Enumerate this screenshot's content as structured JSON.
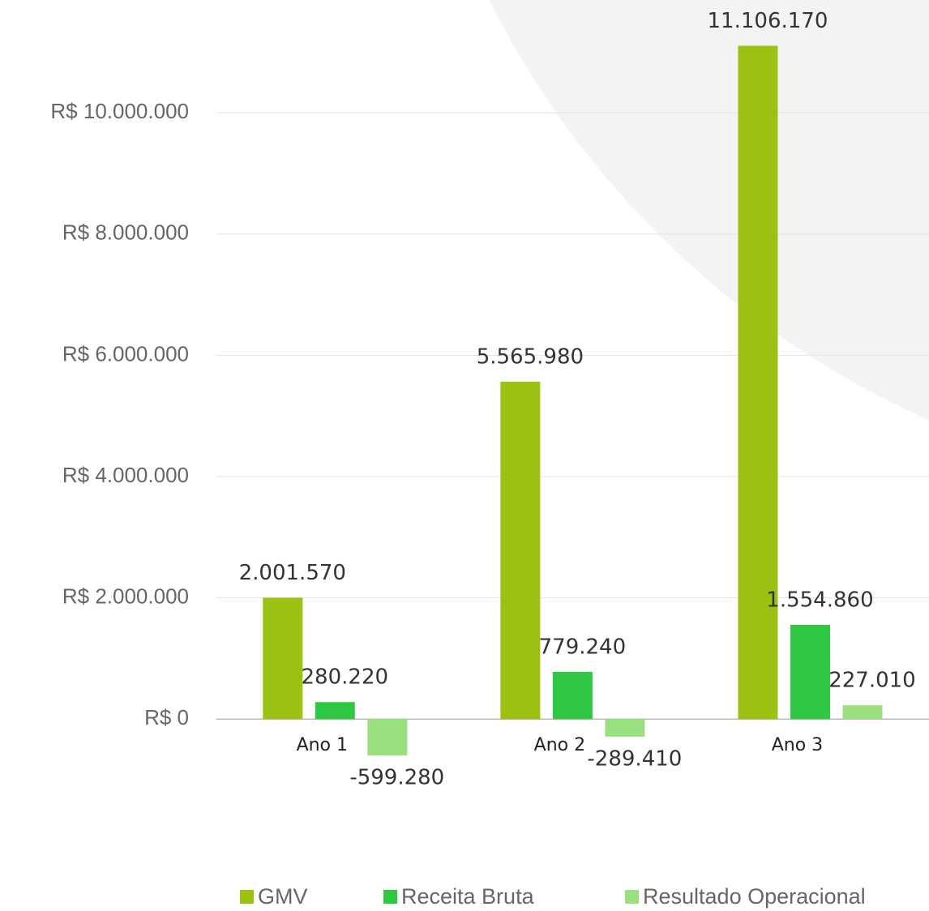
{
  "chart_data": {
    "type": "bar",
    "categories": [
      "Ano 1",
      "Ano 2",
      "Ano 3"
    ],
    "series": [
      {
        "name": "GMV",
        "color": "#9bc212",
        "values": [
          2001570,
          5565980,
          11106170
        ],
        "value_labels": [
          "2.001.570",
          "5.565.980",
          "11.106.170"
        ]
      },
      {
        "name": "Receita Bruta",
        "color": "#2ec843",
        "values": [
          280220,
          779240,
          1554860
        ],
        "value_labels": [
          "280.220",
          "779.240",
          "1.554.860"
        ]
      },
      {
        "name": "Resultado Operacional",
        "color": "#9be07e",
        "values": [
          -599280,
          -289410,
          227010
        ],
        "value_labels": [
          "-599.280",
          "-289.410",
          "227.010"
        ]
      }
    ],
    "ylim": [
      -1000000,
      11500000
    ],
    "yticks": [
      {
        "value": 0,
        "label": "R$ 0"
      },
      {
        "value": 2000000,
        "label": "R$ 2.000.000"
      },
      {
        "value": 4000000,
        "label": "R$ 4.000.000"
      },
      {
        "value": 6000000,
        "label": "R$ 6.000.000"
      },
      {
        "value": 8000000,
        "label": "R$ 8.000.000"
      },
      {
        "value": 10000000,
        "label": "R$ 10.000.000"
      }
    ],
    "grid": true,
    "legend": "bottom"
  }
}
